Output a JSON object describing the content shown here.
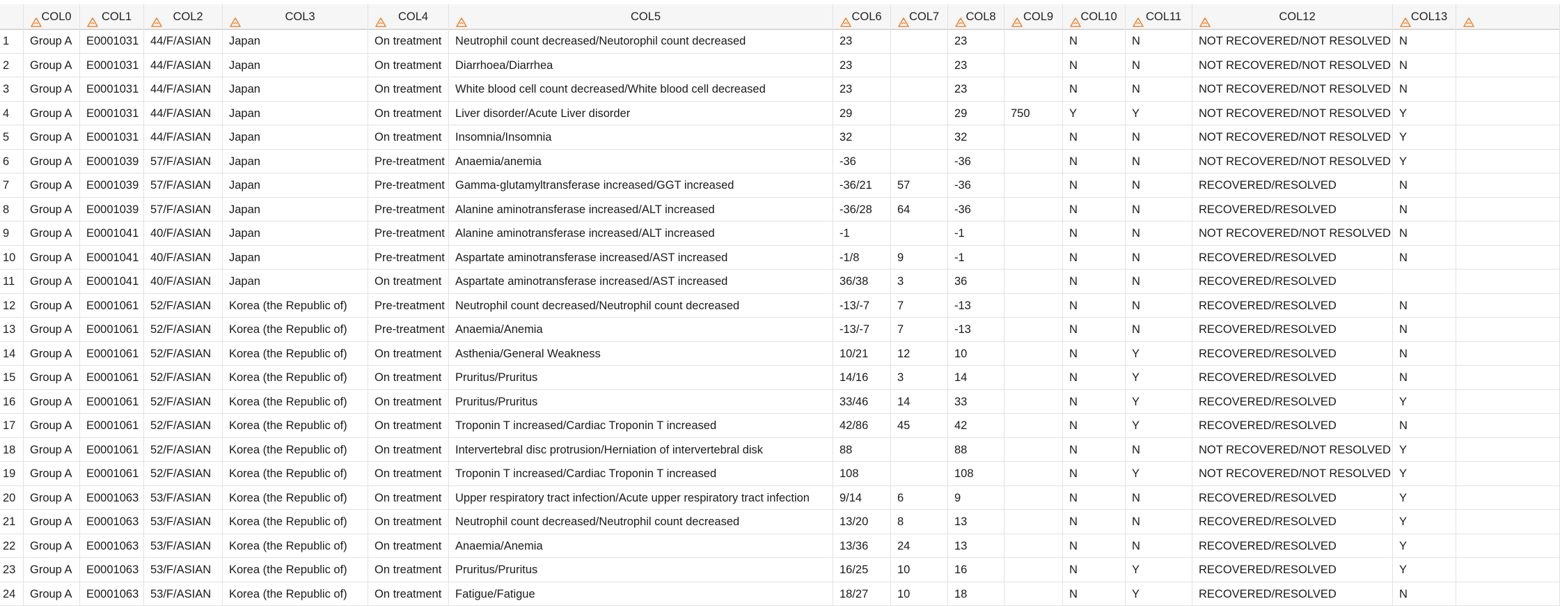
{
  "columns": [
    "",
    "COL0",
    "COL1",
    "COL2",
    "COL3",
    "COL4",
    "COL5",
    "COL6",
    "COL7",
    "COL8",
    "COL9",
    "COL10",
    "COL11",
    "COL12",
    "COL13",
    ""
  ],
  "colors": {
    "header_bg": "#f6f6f6",
    "icon_orange": "#e8883a",
    "grid_line": "#e2e2e2"
  },
  "header_icon": "text-column-icon",
  "rows": [
    [
      "1",
      "Group A",
      "E0001031",
      "44/F/ASIAN",
      "Japan",
      "On treatment",
      "Neutrophil count decreased/Neutorophil count decreased",
      "23",
      "",
      "23",
      "",
      "N",
      "N",
      "NOT RECOVERED/NOT RESOLVED",
      "N"
    ],
    [
      "2",
      "Group A",
      "E0001031",
      "44/F/ASIAN",
      "Japan",
      "On treatment",
      "Diarrhoea/Diarrhea",
      "23",
      "",
      "23",
      "",
      "N",
      "N",
      "NOT RECOVERED/NOT RESOLVED",
      "N"
    ],
    [
      "3",
      "Group A",
      "E0001031",
      "44/F/ASIAN",
      "Japan",
      "On treatment",
      "White blood cell count decreased/White blood cell decreased",
      "23",
      "",
      "23",
      "",
      "N",
      "N",
      "NOT RECOVERED/NOT RESOLVED",
      "N"
    ],
    [
      "4",
      "Group A",
      "E0001031",
      "44/F/ASIAN",
      "Japan",
      "On treatment",
      "Liver disorder/Acute Liver disorder",
      "29",
      "",
      "29",
      "750",
      "Y",
      "Y",
      "NOT RECOVERED/NOT RESOLVED",
      "Y"
    ],
    [
      "5",
      "Group A",
      "E0001031",
      "44/F/ASIAN",
      "Japan",
      "On treatment",
      "Insomnia/Insomnia",
      "32",
      "",
      "32",
      "",
      "N",
      "N",
      "NOT RECOVERED/NOT RESOLVED",
      "Y"
    ],
    [
      "6",
      "Group A",
      "E0001039",
      "57/F/ASIAN",
      "Japan",
      "Pre-treatment",
      "Anaemia/anemia",
      "-36",
      "",
      "-36",
      "",
      "N",
      "N",
      "NOT RECOVERED/NOT RESOLVED",
      "Y"
    ],
    [
      "7",
      "Group A",
      "E0001039",
      "57/F/ASIAN",
      "Japan",
      "Pre-treatment",
      "Gamma-glutamyltransferase increased/GGT increased",
      "-36/21",
      "57",
      "-36",
      "",
      "N",
      "N",
      "RECOVERED/RESOLVED",
      "N"
    ],
    [
      "8",
      "Group A",
      "E0001039",
      "57/F/ASIAN",
      "Japan",
      "Pre-treatment",
      "Alanine aminotransferase increased/ALT increased",
      "-36/28",
      "64",
      "-36",
      "",
      "N",
      "N",
      "RECOVERED/RESOLVED",
      "N"
    ],
    [
      "9",
      "Group A",
      "E0001041",
      "40/F/ASIAN",
      "Japan",
      "Pre-treatment",
      "Alanine aminotransferase increased/ALT increased",
      "-1",
      "",
      "-1",
      "",
      "N",
      "N",
      "NOT RECOVERED/NOT RESOLVED",
      "N"
    ],
    [
      "10",
      "Group A",
      "E0001041",
      "40/F/ASIAN",
      "Japan",
      "Pre-treatment",
      "Aspartate aminotransferase increased/AST increased",
      "-1/8",
      "9",
      "-1",
      "",
      "N",
      "N",
      "RECOVERED/RESOLVED",
      "N"
    ],
    [
      "11",
      "Group A",
      "E0001041",
      "40/F/ASIAN",
      "Japan",
      "On treatment",
      "Aspartate aminotransferase increased/AST increased",
      "36/38",
      "3",
      "36",
      "",
      "N",
      "N",
      "RECOVERED/RESOLVED",
      ""
    ],
    [
      "12",
      "Group A",
      "E0001061",
      "52/F/ASIAN",
      "Korea (the Republic of)",
      "Pre-treatment",
      "Neutrophil count decreased/Neutrophil count decreased",
      "-13/-7",
      "7",
      "-13",
      "",
      "N",
      "N",
      "RECOVERED/RESOLVED",
      "N"
    ],
    [
      "13",
      "Group A",
      "E0001061",
      "52/F/ASIAN",
      "Korea (the Republic of)",
      "Pre-treatment",
      "Anaemia/Anemia",
      "-13/-7",
      "7",
      "-13",
      "",
      "N",
      "N",
      "RECOVERED/RESOLVED",
      "N"
    ],
    [
      "14",
      "Group A",
      "E0001061",
      "52/F/ASIAN",
      "Korea (the Republic of)",
      "On treatment",
      "Asthenia/General Weakness",
      "10/21",
      "12",
      "10",
      "",
      "N",
      "Y",
      "RECOVERED/RESOLVED",
      "N"
    ],
    [
      "15",
      "Group A",
      "E0001061",
      "52/F/ASIAN",
      "Korea (the Republic of)",
      "On treatment",
      "Pruritus/Pruritus",
      "14/16",
      "3",
      "14",
      "",
      "N",
      "Y",
      "RECOVERED/RESOLVED",
      "N"
    ],
    [
      "16",
      "Group A",
      "E0001061",
      "52/F/ASIAN",
      "Korea (the Republic of)",
      "On treatment",
      "Pruritus/Pruritus",
      "33/46",
      "14",
      "33",
      "",
      "N",
      "Y",
      "RECOVERED/RESOLVED",
      "Y"
    ],
    [
      "17",
      "Group A",
      "E0001061",
      "52/F/ASIAN",
      "Korea (the Republic of)",
      "On treatment",
      "Troponin T increased/Cardiac Troponin T increased",
      "42/86",
      "45",
      "42",
      "",
      "N",
      "Y",
      "RECOVERED/RESOLVED",
      "N"
    ],
    [
      "18",
      "Group A",
      "E0001061",
      "52/F/ASIAN",
      "Korea (the Republic of)",
      "On treatment",
      "Intervertebral disc protrusion/Herniation of intervertebral disk",
      "88",
      "",
      "88",
      "",
      "N",
      "N",
      "NOT RECOVERED/NOT RESOLVED",
      "Y"
    ],
    [
      "19",
      "Group A",
      "E0001061",
      "52/F/ASIAN",
      "Korea (the Republic of)",
      "On treatment",
      "Troponin T increased/Cardiac Troponin T increased",
      "108",
      "",
      "108",
      "",
      "N",
      "Y",
      "NOT RECOVERED/NOT RESOLVED",
      "Y"
    ],
    [
      "20",
      "Group A",
      "E0001063",
      "53/F/ASIAN",
      "Korea (the Republic of)",
      "On treatment",
      "Upper respiratory tract infection/Acute upper respiratory tract infection",
      "9/14",
      "6",
      "9",
      "",
      "N",
      "N",
      "RECOVERED/RESOLVED",
      "Y"
    ],
    [
      "21",
      "Group A",
      "E0001063",
      "53/F/ASIAN",
      "Korea (the Republic of)",
      "On treatment",
      "Neutrophil count decreased/Neutrophil count decreased",
      "13/20",
      "8",
      "13",
      "",
      "N",
      "N",
      "RECOVERED/RESOLVED",
      "Y"
    ],
    [
      "22",
      "Group A",
      "E0001063",
      "53/F/ASIAN",
      "Korea (the Republic of)",
      "On treatment",
      "Anaemia/Anemia",
      "13/36",
      "24",
      "13",
      "",
      "N",
      "N",
      "RECOVERED/RESOLVED",
      "Y"
    ],
    [
      "23",
      "Group A",
      "E0001063",
      "53/F/ASIAN",
      "Korea (the Republic of)",
      "On treatment",
      "Pruritus/Pruritus",
      "16/25",
      "10",
      "16",
      "",
      "N",
      "Y",
      "RECOVERED/RESOLVED",
      "Y"
    ],
    [
      "24",
      "Group A",
      "E0001063",
      "53/F/ASIAN",
      "Korea (the Republic of)",
      "On treatment",
      "Fatigue/Fatigue",
      "18/27",
      "10",
      "18",
      "",
      "N",
      "Y",
      "RECOVERED/RESOLVED",
      "N"
    ]
  ]
}
